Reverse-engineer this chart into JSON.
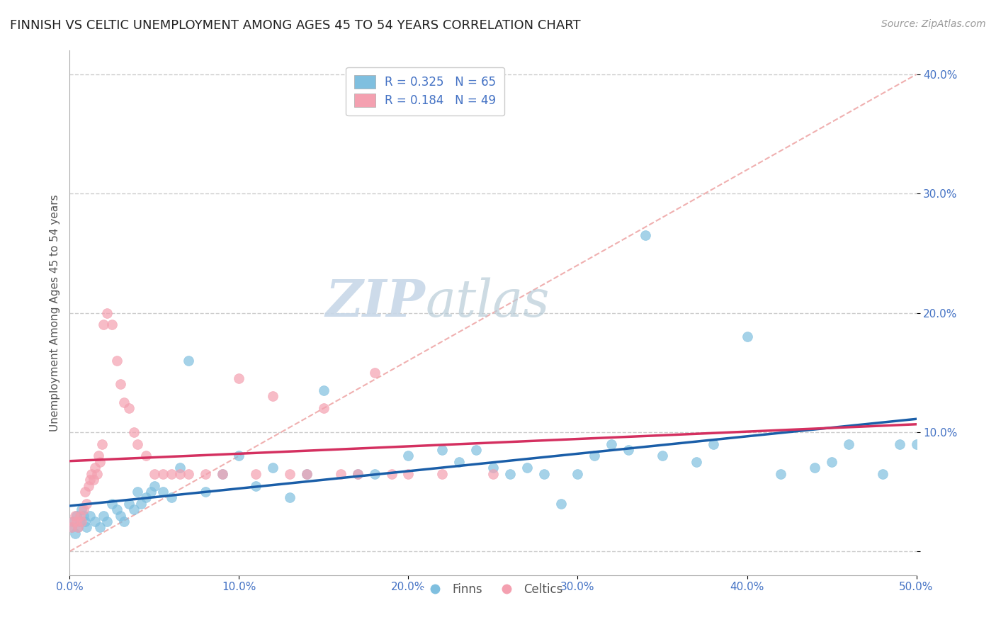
{
  "title": "FINNISH VS CELTIC UNEMPLOYMENT AMONG AGES 45 TO 54 YEARS CORRELATION CHART",
  "source": "Source: ZipAtlas.com",
  "ylabel": "Unemployment Among Ages 45 to 54 years",
  "xlim": [
    0.0,
    0.5
  ],
  "ylim": [
    -0.02,
    0.42
  ],
  "xticks": [
    0.0,
    0.1,
    0.2,
    0.3,
    0.4,
    0.5
  ],
  "xticklabels": [
    "0.0%",
    "10.0%",
    "20.0%",
    "30.0%",
    "40.0%",
    "50.0%"
  ],
  "yticks": [
    0.0,
    0.1,
    0.2,
    0.3,
    0.4
  ],
  "yticklabels": [
    "",
    "10.0%",
    "20.0%",
    "30.0%",
    "40.0%"
  ],
  "background_color": "#ffffff",
  "watermark_zip": "ZIP",
  "watermark_atlas": "atlas",
  "legend_line1": "R = 0.325   N = 65",
  "legend_line2": "R = 0.184   N = 49",
  "finns_color": "#7fbfdf",
  "celts_color": "#f4a0b0",
  "finns_line_color": "#1a5ea8",
  "celts_line_color": "#d43060",
  "finns_x": [
    0.001,
    0.002,
    0.003,
    0.004,
    0.005,
    0.006,
    0.007,
    0.008,
    0.009,
    0.01,
    0.012,
    0.015,
    0.018,
    0.02,
    0.022,
    0.025,
    0.028,
    0.03,
    0.032,
    0.035,
    0.038,
    0.04,
    0.042,
    0.045,
    0.048,
    0.05,
    0.055,
    0.06,
    0.065,
    0.07,
    0.08,
    0.09,
    0.1,
    0.11,
    0.12,
    0.13,
    0.14,
    0.15,
    0.17,
    0.18,
    0.2,
    0.22,
    0.23,
    0.24,
    0.25,
    0.26,
    0.27,
    0.28,
    0.29,
    0.3,
    0.31,
    0.32,
    0.33,
    0.34,
    0.35,
    0.37,
    0.38,
    0.4,
    0.42,
    0.44,
    0.45,
    0.46,
    0.48,
    0.49,
    0.5
  ],
  "finns_y": [
    0.02,
    0.025,
    0.015,
    0.03,
    0.02,
    0.025,
    0.035,
    0.03,
    0.025,
    0.02,
    0.03,
    0.025,
    0.02,
    0.03,
    0.025,
    0.04,
    0.035,
    0.03,
    0.025,
    0.04,
    0.035,
    0.05,
    0.04,
    0.045,
    0.05,
    0.055,
    0.05,
    0.045,
    0.07,
    0.16,
    0.05,
    0.065,
    0.08,
    0.055,
    0.07,
    0.045,
    0.065,
    0.135,
    0.065,
    0.065,
    0.08,
    0.085,
    0.075,
    0.085,
    0.07,
    0.065,
    0.07,
    0.065,
    0.04,
    0.065,
    0.08,
    0.09,
    0.085,
    0.265,
    0.08,
    0.075,
    0.09,
    0.18,
    0.065,
    0.07,
    0.075,
    0.09,
    0.065,
    0.09,
    0.09
  ],
  "celts_x": [
    0.001,
    0.002,
    0.003,
    0.004,
    0.005,
    0.006,
    0.007,
    0.008,
    0.009,
    0.01,
    0.011,
    0.012,
    0.013,
    0.014,
    0.015,
    0.016,
    0.017,
    0.018,
    0.019,
    0.02,
    0.022,
    0.025,
    0.028,
    0.03,
    0.032,
    0.035,
    0.038,
    0.04,
    0.045,
    0.05,
    0.055,
    0.06,
    0.065,
    0.07,
    0.08,
    0.09,
    0.1,
    0.11,
    0.12,
    0.13,
    0.14,
    0.15,
    0.16,
    0.17,
    0.18,
    0.19,
    0.2,
    0.22,
    0.25
  ],
  "celts_y": [
    0.02,
    0.025,
    0.03,
    0.025,
    0.02,
    0.03,
    0.025,
    0.035,
    0.05,
    0.04,
    0.055,
    0.06,
    0.065,
    0.06,
    0.07,
    0.065,
    0.08,
    0.075,
    0.09,
    0.19,
    0.2,
    0.19,
    0.16,
    0.14,
    0.125,
    0.12,
    0.1,
    0.09,
    0.08,
    0.065,
    0.065,
    0.065,
    0.065,
    0.065,
    0.065,
    0.065,
    0.145,
    0.065,
    0.13,
    0.065,
    0.065,
    0.12,
    0.065,
    0.065,
    0.15,
    0.065,
    0.065,
    0.065,
    0.065
  ],
  "grid_color": "#cccccc",
  "title_fontsize": 13,
  "axis_label_fontsize": 11,
  "tick_fontsize": 11,
  "legend_fontsize": 12,
  "finns_label": "Finns",
  "celts_label": "Celtics"
}
